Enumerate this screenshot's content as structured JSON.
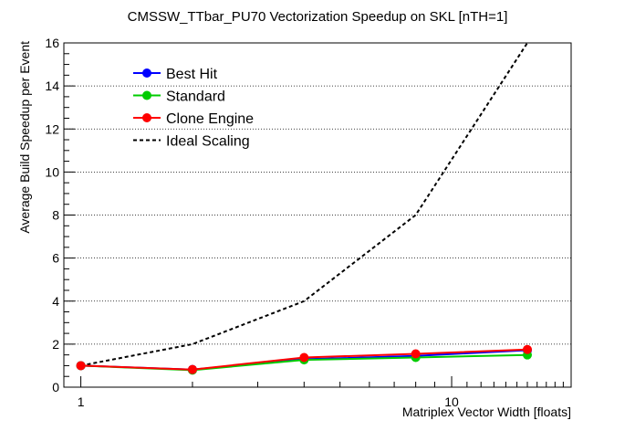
{
  "chart_data": {
    "type": "line",
    "title": "CMSSW_TTbar_PU70 Vectorization Speedup on SKL [nTH=1]",
    "xlabel": "Matriplex Vector Width [floats]",
    "ylabel": "Average Build Speedup per Event",
    "xscale": "log",
    "xlim": [
      0.9,
      21
    ],
    "ylim": [
      0,
      16
    ],
    "x": [
      1,
      2,
      4,
      8,
      16
    ],
    "x_tick_labels": [
      "1",
      "10"
    ],
    "y_ticks": [
      0,
      2,
      4,
      6,
      8,
      10,
      12,
      14,
      16
    ],
    "grid": "horizontal dotted",
    "legend_position": "top-left",
    "series": [
      {
        "name": "Best Hit",
        "color": "#0000ff",
        "marker": "circle",
        "line": "solid",
        "values": [
          1.0,
          0.82,
          1.3,
          1.45,
          1.72
        ]
      },
      {
        "name": "Standard",
        "color": "#00cc00",
        "marker": "circle",
        "line": "solid",
        "values": [
          1.0,
          0.79,
          1.27,
          1.38,
          1.5
        ]
      },
      {
        "name": "Clone Engine",
        "color": "#ff0000",
        "marker": "circle",
        "line": "solid",
        "values": [
          1.0,
          0.82,
          1.38,
          1.55,
          1.75
        ]
      },
      {
        "name": "Ideal Scaling",
        "color": "#000000",
        "marker": "none",
        "line": "dashed",
        "values": [
          1,
          2,
          4,
          8,
          16
        ]
      }
    ]
  }
}
